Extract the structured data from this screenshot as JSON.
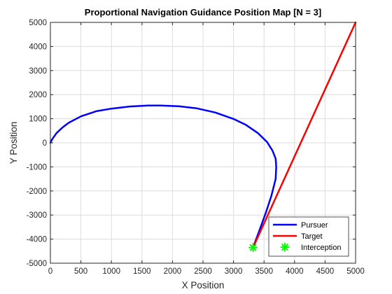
{
  "chart_data": {
    "type": "line",
    "title": "Proportional Navigation Guidance Position Map [N = 3]",
    "xlabel": "X Position",
    "ylabel": "Y Position",
    "xlim": [
      0,
      5000
    ],
    "ylim": [
      -5000,
      5000
    ],
    "xticks": [
      0,
      500,
      1000,
      1500,
      2000,
      2500,
      3000,
      3500,
      4000,
      4500,
      5000
    ],
    "yticks": [
      -5000,
      -4000,
      -3000,
      -2000,
      -1000,
      0,
      1000,
      2000,
      3000,
      4000,
      5000
    ],
    "grid": true,
    "legend_position": "bottom-right",
    "series": [
      {
        "name": "Pursuer",
        "color": "#0000ff",
        "style": "line",
        "x": [
          0,
          30,
          100,
          200,
          300,
          500,
          750,
          1000,
          1300,
          1600,
          1800,
          2100,
          2400,
          2700,
          3000,
          3200,
          3400,
          3550,
          3640,
          3690,
          3700,
          3690,
          3620,
          3530,
          3430,
          3320
        ],
        "y": [
          0,
          150,
          400,
          640,
          830,
          1100,
          1310,
          1420,
          1510,
          1550,
          1550,
          1520,
          1430,
          1260,
          990,
          750,
          400,
          30,
          -330,
          -660,
          -1000,
          -1500,
          -2200,
          -2900,
          -3600,
          -4350
        ]
      },
      {
        "name": "Target",
        "color": "#ff0000",
        "style": "line",
        "x": [
          3320,
          5000
        ],
        "y": [
          -4350,
          5000
        ]
      },
      {
        "name": "Interception",
        "color": "#00ff00",
        "style": "marker",
        "x": [
          3320
        ],
        "y": [
          -4350
        ]
      }
    ]
  }
}
